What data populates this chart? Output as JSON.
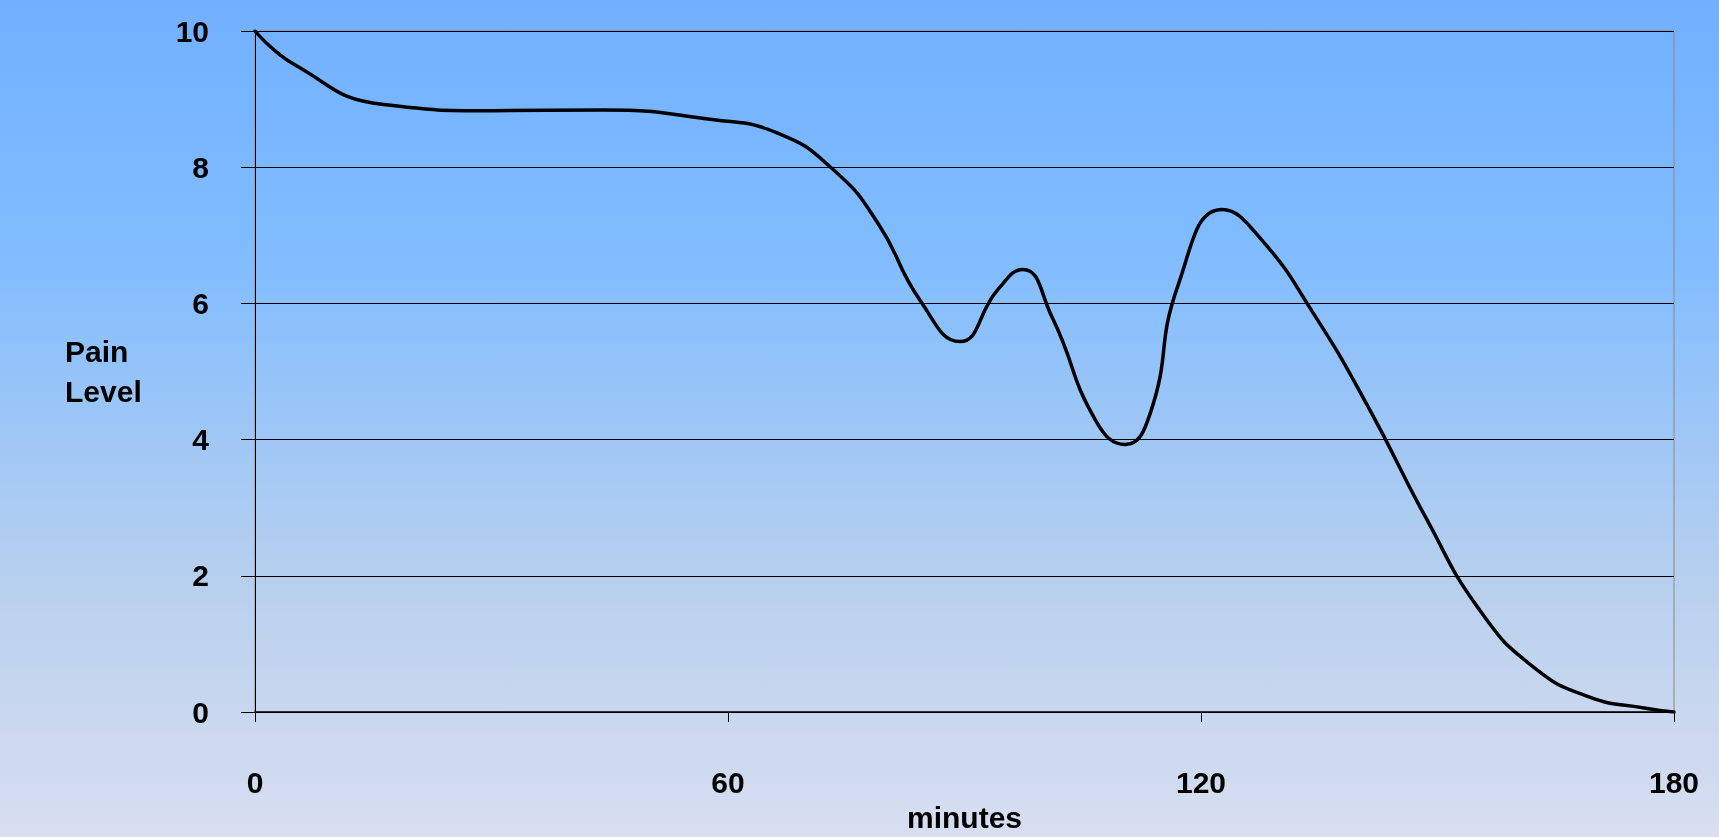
{
  "chart_data": {
    "type": "line",
    "xlabel": "minutes",
    "ylabel": "Pain\nLevel",
    "x": [
      0,
      5.1,
      16.3,
      30.2,
      44.1,
      58,
      66.3,
      73.3,
      78.9,
      84.4,
      89.4,
      94.2,
      97.4,
      101.1,
      106.7,
      110.4,
      113.6,
      117.1,
      122.7,
      127.5,
      134.5,
      141.5,
      148.4,
      155.4,
      162.3,
      169.3,
      176.2,
      180
    ],
    "series": [
      {
        "color": "#000000",
        "values": [
          10,
          9.5,
          8.92,
          8.83,
          8.84,
          8.7,
          8.5,
          7.97,
          7.2,
          6.04,
          5.44,
          6.2,
          6.5,
          5.8,
          4.27,
          3.93,
          4.4,
          6.27,
          7.38,
          6.96,
          5.81,
          4.42,
          2.88,
          1.49,
          0.65,
          0.22,
          0.06,
          0
        ]
      }
    ],
    "xlim": [
      0,
      180
    ],
    "xticks": [
      0,
      60,
      120,
      180
    ],
    "ylim": [
      0,
      10
    ],
    "yticks": [
      0,
      2,
      4,
      6,
      8,
      10
    ],
    "grid": "y",
    "marker": "none",
    "line_style": "solid"
  }
}
